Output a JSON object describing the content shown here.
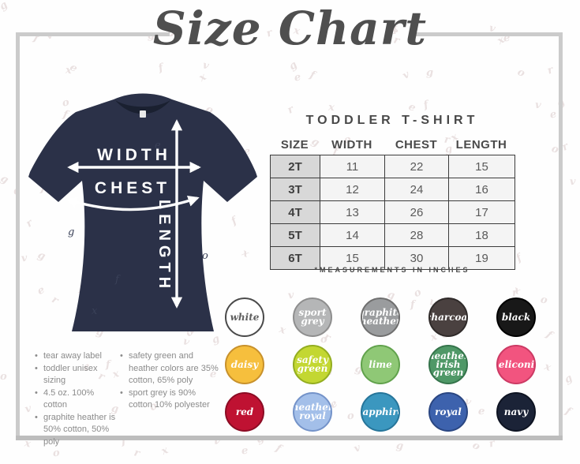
{
  "title": "Size Chart",
  "watermark": {
    "letters": [
      "g",
      "f",
      "x",
      "o",
      "v",
      "e",
      "r"
    ]
  },
  "diagram": {
    "labels": {
      "width": "WIDTH",
      "chest": "CHEST",
      "length": "LENGTH"
    },
    "shirt_color": "#2b3148"
  },
  "size_table": {
    "heading": "TODDLER T-SHIRT",
    "columns": [
      "SIZE",
      "WIDTH",
      "CHEST",
      "LENGTH"
    ],
    "rows": [
      {
        "size": "2T",
        "width": "11",
        "chest": "22",
        "length": "15"
      },
      {
        "size": "3T",
        "width": "12",
        "chest": "24",
        "length": "16"
      },
      {
        "size": "4T",
        "width": "13",
        "chest": "26",
        "length": "17"
      },
      {
        "size": "5T",
        "width": "14",
        "chest": "28",
        "length": "18"
      },
      {
        "size": "6T",
        "width": "15",
        "chest": "30",
        "length": "19"
      }
    ],
    "footnote": "*MEASUREMENTS IN INCHES"
  },
  "notes": {
    "left": [
      "tear away label",
      "toddler unisex sizing",
      "4.5 oz. 100% cotton",
      "graphite heather is 50% cotton, 50% poly"
    ],
    "right": [
      "safety green and heather colors are 35% cotton, 65% poly",
      "sport grey is 90% cotton 10% polyester"
    ]
  },
  "swatches": [
    {
      "label": "white",
      "fill": "#ffffff",
      "border": "#4a4a4a",
      "text_color": "#5f5f5f"
    },
    {
      "label": "sport grey",
      "fill": "#b5b6b7",
      "border": "#8e8e8e",
      "text_color": "#ffffff"
    },
    {
      "label": "graphite heather",
      "fill": "#9a9c9e",
      "border": "#6f6f6f",
      "text_color": "#ffffff"
    },
    {
      "label": "charcoal",
      "fill": "#4a4140",
      "border": "#2f2a29",
      "text_color": "#ffffff"
    },
    {
      "label": "black",
      "fill": "#181818",
      "border": "#000000",
      "text_color": "#ffffff"
    },
    {
      "label": "daisy",
      "fill": "#f6bf3d",
      "border": "#c8912b",
      "text_color": "#ffffff"
    },
    {
      "label": "safety green",
      "fill": "#c3d732",
      "border": "#93ad20",
      "text_color": "#ffffff"
    },
    {
      "label": "lime",
      "fill": "#8fc876",
      "border": "#61a24c",
      "text_color": "#ffffff"
    },
    {
      "label": "heather irish green",
      "fill": "#4f9867",
      "border": "#35744b",
      "text_color": "#ffffff"
    },
    {
      "label": "heliconia",
      "fill": "#f2547f",
      "border": "#cc3a64",
      "text_color": "#ffffff"
    },
    {
      "label": "red",
      "fill": "#bf1232",
      "border": "#8c0c24",
      "text_color": "#ffffff"
    },
    {
      "label": "heather royal",
      "fill": "#a3bfe9",
      "border": "#7493c9",
      "text_color": "#ffffff"
    },
    {
      "label": "sapphire",
      "fill": "#3b97bf",
      "border": "#26759a",
      "text_color": "#ffffff"
    },
    {
      "label": "royal",
      "fill": "#3d62ad",
      "border": "#2a4682",
      "text_color": "#ffffff"
    },
    {
      "label": "navy",
      "fill": "#1b2337",
      "border": "#0e1422",
      "text_color": "#ffffff"
    }
  ]
}
